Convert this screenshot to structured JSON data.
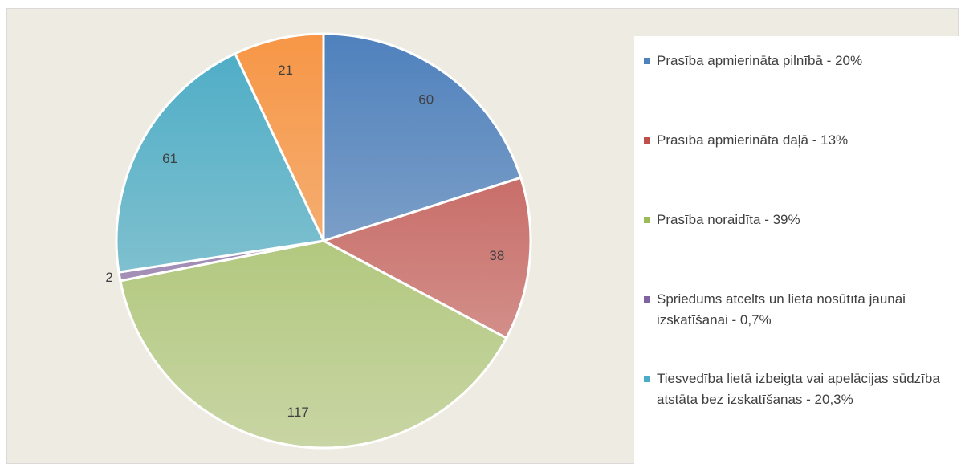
{
  "chart_data": {
    "type": "pie",
    "categories": [
      "Prasība apmierināta pilnībā - 20%",
      "Prasība apmierināta daļā - 13%",
      "Prasība noraidīta - 39%",
      "Spriedums atcelts un lieta nosūtīta jaunai izskatīšanai - 0,7%",
      "Tiesvedība lietā izbeigta vai apelācijas sūdzība atstāta bez izskatīšanas - 20,3%",
      null
    ],
    "values": [
      60,
      38,
      117,
      2,
      61,
      21
    ],
    "colors": [
      "#4f81bd",
      "#c0504d",
      "#9bbb59",
      "#8064a2",
      "#4bacc6",
      "#f79646"
    ],
    "legend": "right"
  }
}
